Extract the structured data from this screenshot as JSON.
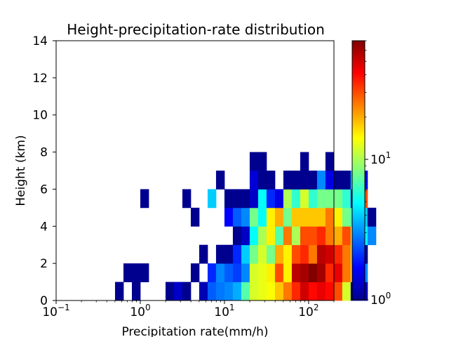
{
  "chart_data": {
    "type": "heatmap",
    "title": "Height-precipitation-rate distribution",
    "xlabel": "Precipitation rate(mm/h)",
    "ylabel": "Height (km)",
    "x_scale": "log",
    "xlim": [
      0.1,
      200
    ],
    "ylim": [
      0,
      14
    ],
    "x_ticks": [
      {
        "value": 0.1,
        "base": "10",
        "exp": "−1"
      },
      {
        "value": 1,
        "base": "10",
        "exp": "0"
      },
      {
        "value": 10,
        "base": "10",
        "exp": "1"
      },
      {
        "value": 100,
        "base": "10",
        "exp": "2"
      }
    ],
    "y_ticks": [
      "0",
      "2",
      "4",
      "6",
      "8",
      "10",
      "12",
      "14"
    ],
    "colorbar": {
      "scale": "log",
      "range": [
        1,
        70
      ],
      "colormap": "jet",
      "ticks": [
        {
          "value": 1,
          "base": "10",
          "exp": "0"
        },
        {
          "value": 10,
          "base": "10",
          "exp": "1"
        }
      ]
    },
    "bins": {
      "x_log_start": -0.7,
      "x_log_step": 0.1,
      "y_start": 0,
      "y_step": 1
    },
    "cells": [
      [
        4,
        0,
        1
      ],
      [
        6,
        0,
        1
      ],
      [
        10,
        0,
        1
      ],
      [
        11,
        0,
        1.3
      ],
      [
        12,
        0,
        1
      ],
      [
        14,
        0,
        1.2
      ],
      [
        15,
        0,
        2.5
      ],
      [
        16,
        0,
        2.8
      ],
      [
        17,
        0,
        3
      ],
      [
        18,
        0,
        3.5
      ],
      [
        19,
        0,
        7
      ],
      [
        20,
        0,
        12
      ],
      [
        21,
        0,
        13
      ],
      [
        22,
        0,
        14
      ],
      [
        23,
        0,
        18
      ],
      [
        24,
        0,
        25
      ],
      [
        25,
        0,
        35
      ],
      [
        26,
        0,
        50
      ],
      [
        27,
        0,
        40
      ],
      [
        28,
        0,
        45
      ],
      [
        29,
        0,
        40
      ],
      [
        30,
        0,
        30
      ],
      [
        31,
        0,
        12
      ],
      [
        32,
        0,
        1
      ],
      [
        33,
        0,
        1.2
      ],
      [
        5,
        1,
        1
      ],
      [
        6,
        1,
        1
      ],
      [
        7,
        1,
        1
      ],
      [
        13,
        1,
        1
      ],
      [
        15,
        1,
        2
      ],
      [
        16,
        1,
        3
      ],
      [
        17,
        1,
        2.5
      ],
      [
        18,
        1,
        2.2
      ],
      [
        19,
        1,
        3
      ],
      [
        20,
        1,
        12
      ],
      [
        21,
        1,
        13
      ],
      [
        22,
        1,
        15
      ],
      [
        23,
        1,
        30
      ],
      [
        24,
        1,
        15
      ],
      [
        25,
        1,
        55
      ],
      [
        26,
        1,
        60
      ],
      [
        27,
        1,
        70
      ],
      [
        28,
        1,
        60
      ],
      [
        29,
        1,
        35
      ],
      [
        30,
        1,
        45
      ],
      [
        31,
        1,
        25
      ],
      [
        32,
        1,
        12
      ],
      [
        33,
        1,
        3
      ],
      [
        14,
        2,
        1
      ],
      [
        16,
        2,
        1
      ],
      [
        17,
        2,
        1
      ],
      [
        18,
        2,
        2
      ],
      [
        19,
        2,
        4
      ],
      [
        20,
        2,
        8
      ],
      [
        21,
        2,
        12
      ],
      [
        22,
        2,
        8
      ],
      [
        23,
        2,
        20
      ],
      [
        24,
        2,
        15
      ],
      [
        25,
        2,
        30
      ],
      [
        26,
        2,
        35
      ],
      [
        27,
        2,
        25
      ],
      [
        28,
        2,
        55
      ],
      [
        29,
        2,
        50
      ],
      [
        30,
        2,
        35
      ],
      [
        31,
        2,
        25
      ],
      [
        32,
        2,
        10
      ],
      [
        33,
        2,
        1
      ],
      [
        18,
        3,
        1
      ],
      [
        19,
        3,
        1.3
      ],
      [
        20,
        3,
        5
      ],
      [
        21,
        3,
        10
      ],
      [
        22,
        3,
        15
      ],
      [
        23,
        3,
        7
      ],
      [
        24,
        3,
        25
      ],
      [
        25,
        3,
        10
      ],
      [
        26,
        3,
        30
      ],
      [
        27,
        3,
        30
      ],
      [
        28,
        3,
        35
      ],
      [
        29,
        3,
        25
      ],
      [
        30,
        3,
        20
      ],
      [
        31,
        3,
        30
      ],
      [
        32,
        3,
        10
      ],
      [
        33,
        3,
        5
      ],
      [
        34,
        3,
        3
      ],
      [
        13,
        4,
        1
      ],
      [
        17,
        4,
        1.7
      ],
      [
        18,
        4,
        2.5
      ],
      [
        19,
        4,
        3
      ],
      [
        20,
        4,
        8
      ],
      [
        21,
        4,
        5
      ],
      [
        22,
        4,
        15
      ],
      [
        23,
        4,
        20
      ],
      [
        24,
        4,
        8
      ],
      [
        25,
        4,
        18
      ],
      [
        26,
        4,
        18
      ],
      [
        27,
        4,
        18
      ],
      [
        28,
        4,
        18
      ],
      [
        29,
        4,
        25
      ],
      [
        30,
        4,
        15
      ],
      [
        31,
        4,
        8
      ],
      [
        32,
        4,
        6
      ],
      [
        33,
        4,
        4
      ],
      [
        34,
        4,
        1
      ],
      [
        7,
        5,
        1
      ],
      [
        12,
        5,
        1
      ],
      [
        15,
        5,
        4
      ],
      [
        17,
        5,
        1
      ],
      [
        18,
        5,
        1
      ],
      [
        19,
        5,
        1
      ],
      [
        20,
        5,
        1.3
      ],
      [
        21,
        5,
        5
      ],
      [
        22,
        5,
        2
      ],
      [
        23,
        5,
        1.5
      ],
      [
        24,
        5,
        10
      ],
      [
        25,
        5,
        6
      ],
      [
        26,
        5,
        12
      ],
      [
        27,
        5,
        6
      ],
      [
        28,
        5,
        8
      ],
      [
        29,
        5,
        8
      ],
      [
        30,
        5,
        8
      ],
      [
        31,
        5,
        6
      ],
      [
        32,
        5,
        1.5
      ],
      [
        33,
        5,
        30
      ],
      [
        16,
        6,
        1
      ],
      [
        20,
        6,
        1.4
      ],
      [
        21,
        6,
        1
      ],
      [
        22,
        6,
        1
      ],
      [
        24,
        6,
        1
      ],
      [
        25,
        6,
        1
      ],
      [
        26,
        6,
        1
      ],
      [
        27,
        6,
        1
      ],
      [
        28,
        6,
        3
      ],
      [
        29,
        6,
        1.5
      ],
      [
        30,
        6,
        1
      ],
      [
        31,
        6,
        1
      ],
      [
        32,
        6,
        4
      ],
      [
        33,
        6,
        1.5
      ],
      [
        20,
        7,
        1
      ],
      [
        21,
        7,
        1
      ],
      [
        26,
        7,
        1
      ],
      [
        29,
        7,
        1
      ]
    ]
  }
}
